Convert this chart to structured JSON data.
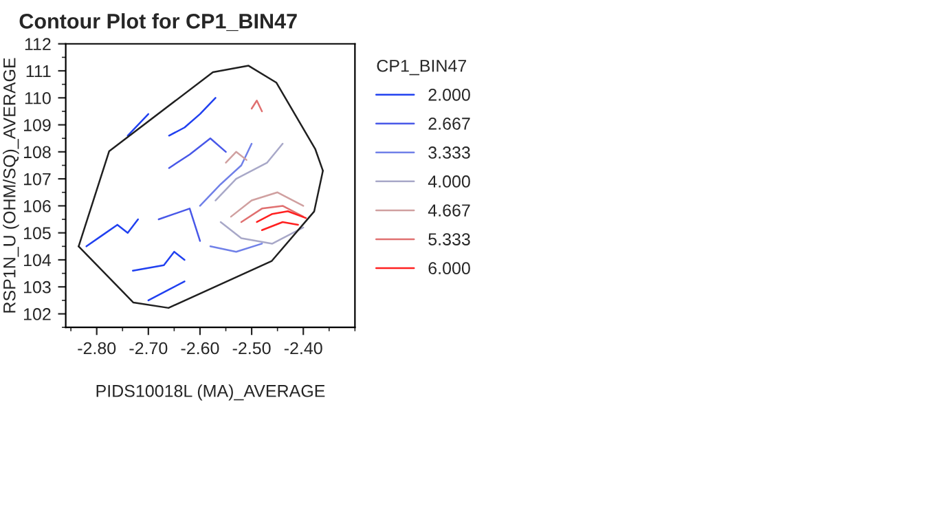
{
  "chart_data": {
    "type": "line",
    "title": "Contour Plot for CP1_BIN47",
    "xlabel": "PIDS10018L (MA)_AVERAGE",
    "ylabel": "RSP1N_U (OHM/SQ)_AVERAGE",
    "legend_title": "CP1_BIN47",
    "legend": "right",
    "grid": false,
    "marker": "none",
    "line_style": "solid",
    "xlim": [
      -2.86,
      -2.3
    ],
    "ylim": [
      101.5,
      112
    ],
    "xticks": [
      {
        "value": -2.8,
        "label": "-2.80"
      },
      {
        "value": -2.7,
        "label": "-2.70"
      },
      {
        "value": -2.6,
        "label": "-2.60"
      },
      {
        "value": -2.5,
        "label": "-2.50"
      },
      {
        "value": -2.4,
        "label": "-2.40"
      }
    ],
    "yticks": [
      102,
      103,
      104,
      105,
      106,
      107,
      108,
      109,
      110,
      111,
      112
    ],
    "series": [
      {
        "name": "2.000",
        "color": "#2040f0",
        "x": [
          -2.82,
          -2.79,
          -2.76,
          -2.74,
          -2.72
        ],
        "values": [
          104.5,
          104.9,
          105.3,
          105.0,
          105.5
        ]
      },
      {
        "color": "#2040f0",
        "x": [
          -2.73,
          -2.67,
          -2.65,
          -2.63
        ],
        "values": [
          103.6,
          103.8,
          104.3,
          104.0
        ]
      },
      {
        "color": "#2040f0",
        "x": [
          -2.7,
          -2.66,
          -2.63
        ],
        "values": [
          102.5,
          102.9,
          103.2
        ]
      },
      {
        "color": "#2040f0",
        "x": [
          -2.66,
          -2.63,
          -2.6,
          -2.57
        ],
        "values": [
          108.6,
          108.9,
          109.4,
          110.0
        ]
      },
      {
        "color": "#2040f0",
        "x": [
          -2.74,
          -2.7
        ],
        "values": [
          108.6,
          109.4
        ]
      },
      {
        "name": "2.667",
        "color": "#4858e8",
        "x": [
          -2.66,
          -2.62,
          -2.58,
          -2.55
        ],
        "values": [
          107.4,
          107.9,
          108.5,
          108.0
        ]
      },
      {
        "color": "#4858e8",
        "x": [
          -2.68,
          -2.62,
          -2.6
        ],
        "values": [
          105.5,
          105.9,
          104.7
        ]
      },
      {
        "name": "3.333",
        "color": "#7080e8",
        "x": [
          -2.6,
          -2.56,
          -2.52,
          -2.5
        ],
        "values": [
          106.0,
          106.8,
          107.5,
          108.3
        ]
      },
      {
        "color": "#7080e8",
        "x": [
          -2.58,
          -2.53,
          -2.48
        ],
        "values": [
          104.5,
          104.3,
          104.6
        ]
      },
      {
        "name": "4.000",
        "color": "#a8a8c8",
        "x": [
          -2.57,
          -2.53,
          -2.47,
          -2.44
        ],
        "values": [
          106.2,
          107.0,
          107.6,
          108.3
        ]
      },
      {
        "color": "#a8a8c8",
        "x": [
          -2.56,
          -2.52,
          -2.46,
          -2.4
        ],
        "values": [
          105.4,
          104.8,
          104.6,
          105.2
        ]
      },
      {
        "name": "4.667",
        "color": "#d0a0a0",
        "x": [
          -2.54,
          -2.5,
          -2.45,
          -2.4
        ],
        "values": [
          105.6,
          106.2,
          106.5,
          106.0
        ]
      },
      {
        "color": "#d0a0a0",
        "x": [
          -2.55,
          -2.53,
          -2.51
        ],
        "values": [
          107.6,
          108.0,
          107.7
        ]
      },
      {
        "name": "5.333",
        "color": "#e07070",
        "x": [
          -2.52,
          -2.48,
          -2.44,
          -2.4
        ],
        "values": [
          105.4,
          105.9,
          106.0,
          105.6
        ]
      },
      {
        "color": "#e07070",
        "x": [
          -2.5,
          -2.49,
          -2.48
        ],
        "values": [
          109.6,
          109.9,
          109.5
        ]
      },
      {
        "name": "6.000",
        "color": "#ff2020",
        "x": [
          -2.49,
          -2.46,
          -2.43,
          -2.395
        ],
        "values": [
          105.4,
          105.7,
          105.8,
          105.55
        ]
      },
      {
        "color": "#ff2020",
        "x": [
          -2.48,
          -2.44,
          -2.41
        ],
        "values": [
          105.1,
          105.4,
          105.3
        ]
      },
      {
        "color": "#202020",
        "x": [
          -2.835,
          -2.776,
          -2.575,
          -2.506,
          -2.452,
          -2.377,
          -2.362
        ],
        "values": [
          104.5,
          108.02,
          110.95,
          111.19,
          110.56,
          108.11,
          107.3
        ]
      },
      {
        "color": "#202020",
        "x": [
          -2.835,
          -2.729,
          -2.661,
          -2.461,
          -2.379,
          -2.362
        ],
        "values": [
          104.5,
          102.42,
          102.22,
          103.96,
          105.79,
          107.3
        ]
      }
    ]
  }
}
